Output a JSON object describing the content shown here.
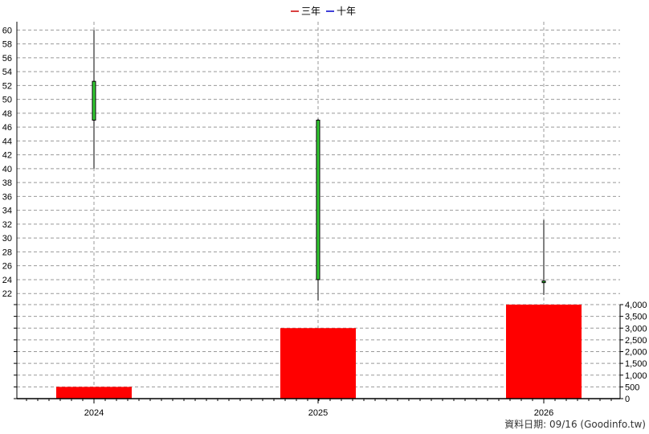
{
  "legend": [
    {
      "label": "三年",
      "color": "#cc0000"
    },
    {
      "label": "十年",
      "color": "#0000cc"
    }
  ],
  "footer_text": "資料日期: 09/16  (Goodinfo.tw)",
  "colors": {
    "candle_body": "#33cc33",
    "wick": "#000000",
    "volume_bar": "#ff0000",
    "grid": "#999999"
  },
  "chart_data": [
    {
      "type": "candlestick",
      "categories": [
        "2024",
        "2025",
        "2026"
      ],
      "candles": [
        {
          "x": "2024",
          "high": 60.0,
          "low": 40.0,
          "open": 52.6,
          "close": 47.0
        },
        {
          "x": "2025",
          "high": 47.2,
          "low": 21.0,
          "open": 47.0,
          "close": 24.0
        },
        {
          "x": "2026",
          "high": 32.6,
          "low": 21.8,
          "open": 23.8,
          "close": 23.6
        }
      ],
      "ylim": [
        20.4,
        61.2
      ],
      "y_ticks": [
        22,
        24,
        26,
        28,
        30,
        32,
        34,
        36,
        38,
        40,
        42,
        44,
        46,
        48,
        50,
        52,
        54,
        56,
        58,
        60
      ],
      "grid": true,
      "legend_position": "top-center"
    },
    {
      "type": "bar",
      "categories": [
        "2024",
        "2025",
        "2026"
      ],
      "values": [
        500,
        3000,
        4000
      ],
      "ylim": [
        0,
        4000
      ],
      "y_ticks": [
        0,
        500,
        1000,
        1500,
        2000,
        2500,
        3000,
        3500,
        4000
      ],
      "y_tick_labels": [
        "0",
        "500",
        "1,000",
        "1,500",
        "2,000",
        "2,500",
        "3,000",
        "3,500",
        "4,000"
      ],
      "grid": true
    }
  ]
}
